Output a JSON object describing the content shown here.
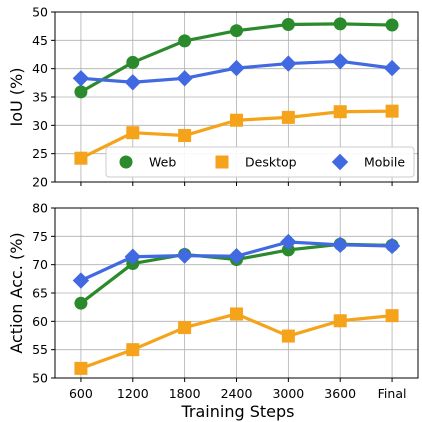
{
  "chart_data": [
    {
      "type": "line",
      "categories": [
        "600",
        "1200",
        "1800",
        "2400",
        "3000",
        "3600",
        "Final"
      ],
      "xlabel": "",
      "ylabel": "IoU (%)",
      "ylim": [
        20,
        50
      ],
      "yticks": [
        "20",
        "25",
        "30",
        "35",
        "40",
        "45",
        "50"
      ],
      "grid": true,
      "legend": "lower-right",
      "series": [
        {
          "name": "Web",
          "marker": "circle",
          "color": "#2b8a2b",
          "values": [
            35.9,
            41.1,
            44.9,
            46.7,
            47.8,
            47.9,
            47.7
          ]
        },
        {
          "name": "Desktop",
          "marker": "square",
          "color": "#f5a31a",
          "values": [
            24.2,
            28.7,
            28.2,
            30.9,
            31.4,
            32.4,
            32.5
          ]
        },
        {
          "name": "Mobile",
          "marker": "diamond",
          "color": "#4169e1",
          "values": [
            38.3,
            37.6,
            38.3,
            40.1,
            40.9,
            41.3,
            40.1
          ]
        }
      ]
    },
    {
      "type": "line",
      "categories": [
        "600",
        "1200",
        "1800",
        "2400",
        "3000",
        "3600",
        "Final"
      ],
      "xlabel": "Training Steps",
      "ylabel": "Action Acc. (%)",
      "ylim": [
        50,
        80
      ],
      "yticks": [
        "50",
        "55",
        "60",
        "65",
        "70",
        "75",
        "80"
      ],
      "grid": true,
      "series": [
        {
          "name": "Web",
          "marker": "circle",
          "color": "#2b8a2b",
          "values": [
            63.2,
            70.2,
            71.8,
            70.9,
            72.6,
            73.6,
            73.4
          ]
        },
        {
          "name": "Desktop",
          "marker": "square",
          "color": "#f5a31a",
          "values": [
            51.7,
            55.0,
            58.9,
            61.3,
            57.4,
            60.1,
            61.0
          ]
        },
        {
          "name": "Mobile",
          "marker": "diamond",
          "color": "#4169e1",
          "values": [
            67.2,
            71.4,
            71.6,
            71.5,
            74.0,
            73.5,
            73.3
          ]
        }
      ]
    }
  ]
}
